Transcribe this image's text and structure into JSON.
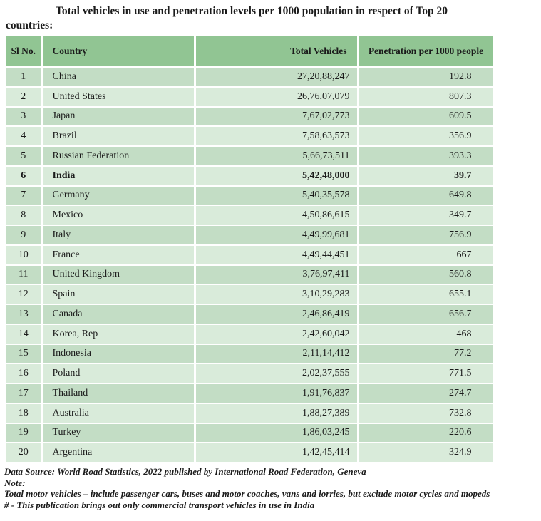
{
  "title": {
    "line1": "Total vehicles in use and penetration levels per 1000 population in respect of Top 20",
    "line2": "countries:"
  },
  "table": {
    "headers": {
      "sl": "Sl No.",
      "country": "Country",
      "total": "Total Vehicles",
      "penetration": "Penetration per 1000 people"
    },
    "rows": [
      {
        "sl": "1",
        "country": "China",
        "total": "27,20,88,247",
        "penetration": "192.8",
        "bold": false
      },
      {
        "sl": "2",
        "country": "United States",
        "total": "26,76,07,079",
        "penetration": "807.3",
        "bold": false
      },
      {
        "sl": "3",
        "country": "Japan",
        "total": "7,67,02,773",
        "penetration": "609.5",
        "bold": false
      },
      {
        "sl": "4",
        "country": "Brazil",
        "total": "7,58,63,573",
        "penetration": "356.9",
        "bold": false
      },
      {
        "sl": "5",
        "country": "Russian Federation",
        "total": "5,66,73,511",
        "penetration": "393.3",
        "bold": false
      },
      {
        "sl": "6",
        "country": "India",
        "total": "5,42,48,000",
        "penetration": "39.7",
        "bold": true
      },
      {
        "sl": "7",
        "country": "Germany",
        "total": "5,40,35,578",
        "penetration": "649.8",
        "bold": false
      },
      {
        "sl": "8",
        "country": "Mexico",
        "total": "4,50,86,615",
        "penetration": "349.7",
        "bold": false
      },
      {
        "sl": "9",
        "country": "Italy",
        "total": "4,49,99,681",
        "penetration": "756.9",
        "bold": false
      },
      {
        "sl": "10",
        "country": "France",
        "total": "4,49,44,451",
        "penetration": "667",
        "bold": false
      },
      {
        "sl": "11",
        "country": "United Kingdom",
        "total": "3,76,97,411",
        "penetration": "560.8",
        "bold": false
      },
      {
        "sl": "12",
        "country": "Spain",
        "total": "3,10,29,283",
        "penetration": "655.1",
        "bold": false
      },
      {
        "sl": "13",
        "country": "Canada",
        "total": "2,46,86,419",
        "penetration": "656.7",
        "bold": false
      },
      {
        "sl": "14",
        "country": "Korea, Rep",
        "total": "2,42,60,042",
        "penetration": "468",
        "bold": false
      },
      {
        "sl": "15",
        "country": "Indonesia",
        "total": "2,11,14,412",
        "penetration": "77.2",
        "bold": false
      },
      {
        "sl": "16",
        "country": "Poland",
        "total": "2,02,37,555",
        "penetration": "771.5",
        "bold": false
      },
      {
        "sl": "17",
        "country": "Thailand",
        "total": "1,91,76,837",
        "penetration": "274.7",
        "bold": false
      },
      {
        "sl": "18",
        "country": "Australia",
        "total": "1,88,27,389",
        "penetration": "732.8",
        "bold": false
      },
      {
        "sl": "19",
        "country": "Turkey",
        "total": "1,86,03,245",
        "penetration": "220.6",
        "bold": false
      },
      {
        "sl": "20",
        "country": "Argentina",
        "total": "1,42,45,414",
        "penetration": "324.9",
        "bold": false
      }
    ]
  },
  "footer": {
    "lines": [
      "Data Source: World Road Statistics, 2022 published by International Road Federation, Geneva",
      "Note:",
      "Total motor vehicles – include passenger cars, buses and motor coaches, vans and lorries, but exclude motor cycles and mopeds",
      "# - This publication brings out only commercial transport vehicles in use in India"
    ]
  },
  "colors": {
    "header_bg": "#91c593",
    "row_odd_bg": "#c3ddc5",
    "row_even_bg": "#d9ebda",
    "border": "#ffffff",
    "text": "#1b1b1b"
  }
}
